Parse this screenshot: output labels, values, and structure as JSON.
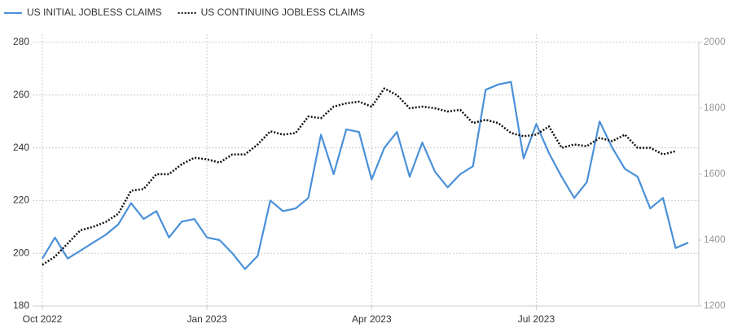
{
  "chart_data": {
    "type": "line",
    "categories": [
      "Oct 2022",
      null,
      null,
      null,
      null,
      null,
      null,
      null,
      null,
      null,
      null,
      null,
      null,
      "Jan 2023",
      null,
      null,
      null,
      null,
      null,
      null,
      null,
      null,
      null,
      null,
      null,
      null,
      "Apr 2023",
      null,
      null,
      null,
      null,
      null,
      null,
      null,
      null,
      null,
      null,
      null,
      null,
      "Jul 2023",
      null,
      null,
      null,
      null,
      null,
      null,
      null,
      null,
      null,
      null,
      null,
      null
    ],
    "series": [
      {
        "name": "US INITIAL JOBLESS CLAIMS",
        "color": "#4a90d9",
        "axis": "y",
        "values": [
          198,
          206,
          198,
          201,
          204,
          207,
          211,
          219,
          213,
          216,
          206,
          212,
          213,
          206,
          205,
          200,
          194,
          199,
          220,
          216,
          217,
          221,
          245,
          230,
          247,
          246,
          228,
          240,
          246,
          229,
          242,
          231,
          225,
          230,
          233,
          262,
          264,
          265,
          236,
          249,
          238,
          229,
          221,
          227,
          250,
          240,
          232,
          229,
          217,
          221,
          202,
          204
        ]
      },
      {
        "name": "US CONTINUING JOBLESS CLAIMS",
        "color": "#111111",
        "axis": "y2",
        "values": [
          1325,
          1350,
          1390,
          1430,
          1440,
          1455,
          1480,
          1550,
          1555,
          1600,
          1600,
          1630,
          1650,
          1645,
          1635,
          1660,
          1660,
          1690,
          1730,
          1720,
          1725,
          1775,
          1770,
          1805,
          1815,
          1820,
          1805,
          1860,
          1840,
          1800,
          1805,
          1800,
          1790,
          1795,
          1755,
          1765,
          1755,
          1725,
          1715,
          1720,
          1745,
          1680,
          1690,
          1685,
          1710,
          1700,
          1720,
          1680,
          1680,
          1660,
          1670,
          null
        ]
      }
    ],
    "ylim": [
      180,
      280
    ],
    "yticks": [
      180,
      200,
      220,
      240,
      260,
      280
    ],
    "y2lim": [
      1200,
      2000
    ],
    "y2ticks": [
      1200,
      1400,
      1600,
      1800,
      2000
    ],
    "grid": true,
    "legend": "top-left"
  }
}
